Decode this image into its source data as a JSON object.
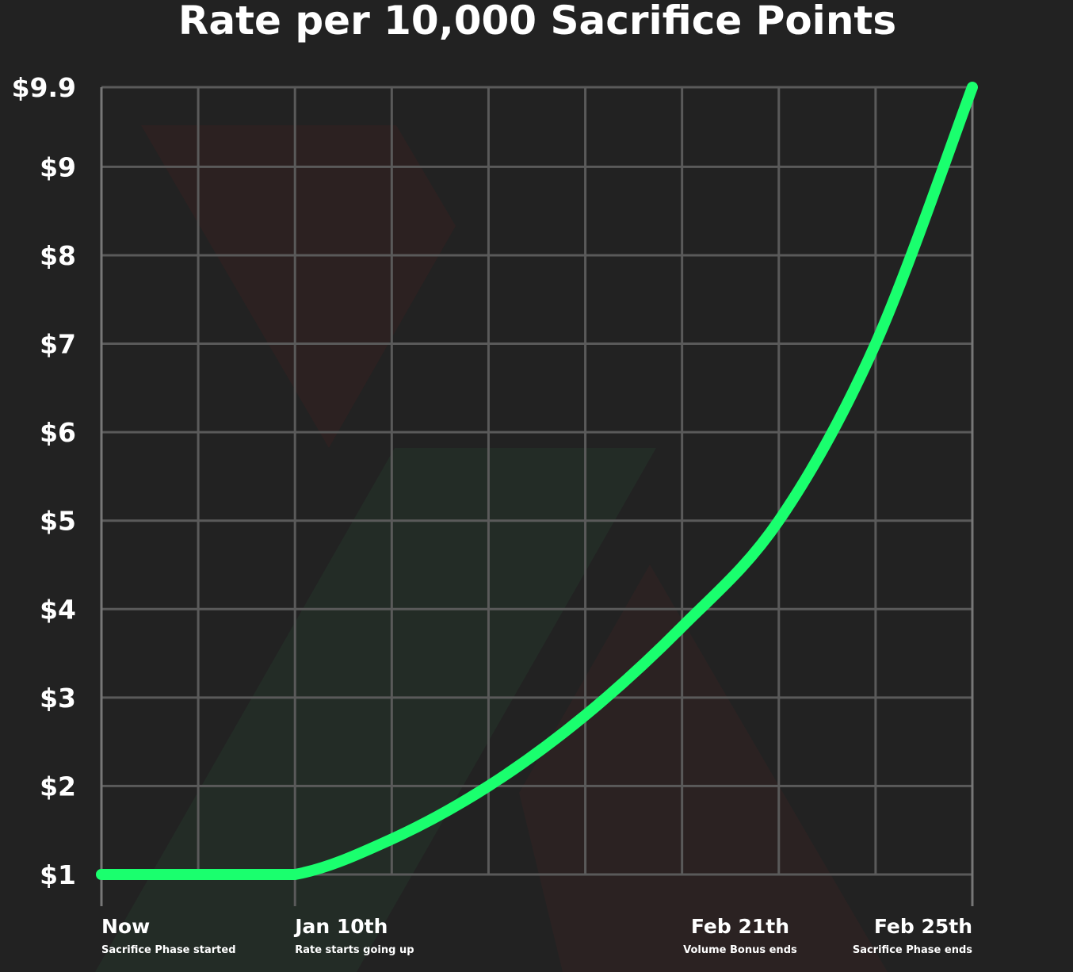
{
  "chart_data": {
    "type": "line",
    "title": "Rate per 10,000 Sacrifice Points",
    "xlabel": "",
    "ylabel": "",
    "yticks": [
      {
        "value": 1,
        "label": "$1"
      },
      {
        "value": 2,
        "label": "$2"
      },
      {
        "value": 3,
        "label": "$3"
      },
      {
        "value": 4,
        "label": "$4"
      },
      {
        "value": 5,
        "label": "$5"
      },
      {
        "value": 6,
        "label": "$6"
      },
      {
        "value": 7,
        "label": "$7"
      },
      {
        "value": 8,
        "label": "$8"
      },
      {
        "value": 9,
        "label": "$9"
      },
      {
        "value": 9.9,
        "label": "$9.9"
      }
    ],
    "ylim": [
      1,
      9.9
    ],
    "xlim": [
      0,
      9
    ],
    "x_gridlines": 10,
    "xticks": [
      {
        "x": 0,
        "label": "Now",
        "sublabel": "Sacrifice Phase started",
        "anchor": "start"
      },
      {
        "x": 2,
        "label": "Jan 10th",
        "sublabel": "Rate starts going up",
        "anchor": "start"
      },
      {
        "x": 6.6,
        "label": "Feb 21th",
        "sublabel": "Volume Bonus ends",
        "anchor": "middle"
      },
      {
        "x": 9,
        "label": "Feb 25th",
        "sublabel": "Sacrifice Phase ends",
        "anchor": "end"
      }
    ],
    "grid": true,
    "series": [
      {
        "color": "#1aff6e",
        "points": [
          [
            0,
            1
          ],
          [
            1,
            1
          ],
          [
            2,
            1
          ],
          [
            3,
            1.4
          ],
          [
            4,
            2
          ],
          [
            5,
            2.8
          ],
          [
            6,
            3.8
          ],
          [
            7,
            5
          ],
          [
            8,
            7
          ],
          [
            9,
            9.9
          ]
        ]
      }
    ]
  }
}
